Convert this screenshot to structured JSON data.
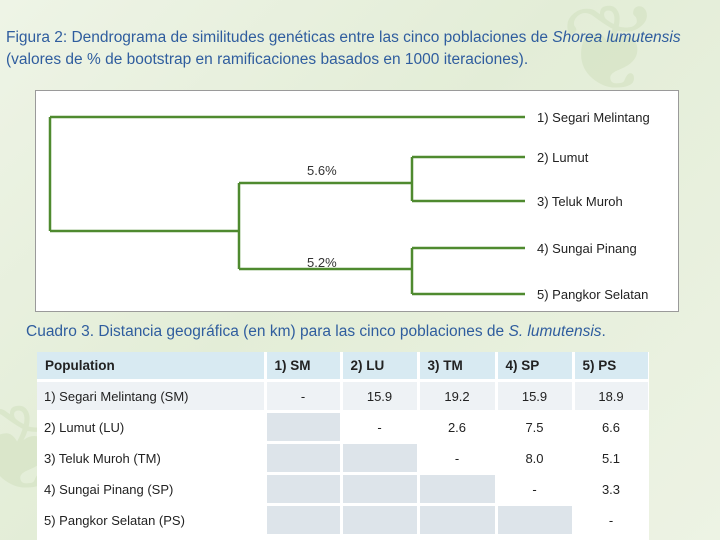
{
  "caption1": {
    "part1": "Figura 2: Dendrograma de similitudes genéticas entre las cinco poblaciones de ",
    "species": "Shorea lumutensis",
    "part2": " (valores de % de bootstrap en ramificaciones basados en 1000 iteraciones)."
  },
  "dendrogram": {
    "leaves": [
      "1) Segari Melintang",
      "2) Lumut",
      "3) Teluk Muroh",
      "4) Sungai Pinang",
      "5) Pangkor Selatan"
    ],
    "bootstrap_upper": "5.6%",
    "bootstrap_lower": "5.2%",
    "line_color": "#4f8a2f"
  },
  "caption2": {
    "part1": "Cuadro 3. Distancia geográfica (en km) para las cinco poblaciones de ",
    "species": "S. lumutensis",
    "part2": "."
  },
  "table": {
    "headers": [
      "Population",
      "1) SM",
      "2) LU",
      "3) TM",
      "4) SP",
      "5) PS"
    ],
    "rows": [
      [
        "1) Segari Melintang (SM)",
        "-",
        "15.9",
        "19.2",
        "15.9",
        "18.9"
      ],
      [
        "2) Lumut (LU)",
        "",
        "-",
        "2.6",
        "7.5",
        "6.6"
      ],
      [
        "3) Teluk Muroh (TM)",
        "",
        "",
        "-",
        "8.0",
        "5.1"
      ],
      [
        "4) Sungai Pinang (SP)",
        "",
        "",
        "",
        "-",
        "3.3"
      ],
      [
        "5) Pangkor Selatan (PS)",
        "",
        "",
        "",
        "",
        "-"
      ]
    ]
  }
}
